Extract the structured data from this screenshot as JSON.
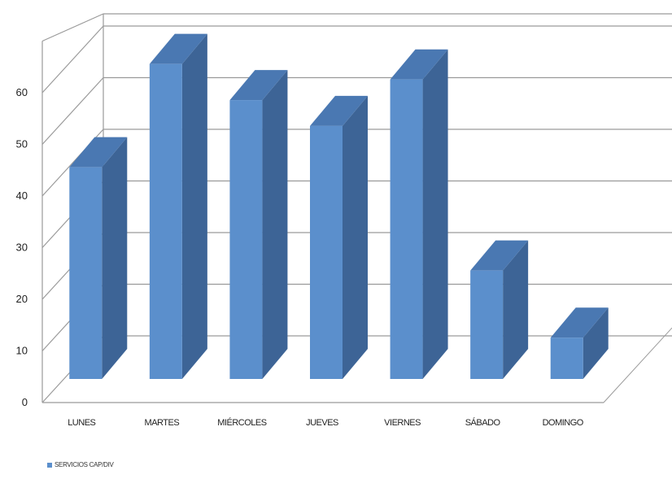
{
  "chart_data": {
    "type": "bar",
    "title": "",
    "xlabel": "",
    "ylabel": "",
    "categories": [
      "LUNES",
      "MARTES",
      "MIÉRCOLES",
      "JUEVES",
      "VIERNES",
      "SÁBADO",
      "DOMINGO"
    ],
    "series": [
      {
        "name": "SERVICIOS CAP/DIV",
        "values": [
          41,
          61,
          54,
          49,
          58,
          21,
          8
        ]
      }
    ],
    "y_ticks": [
      0,
      10,
      20,
      30,
      40,
      50,
      60
    ],
    "ylim": [
      0,
      70
    ],
    "grid": true,
    "projection": "3d",
    "legend_position": "bottom-left",
    "colors": {
      "bar_front": "#5B8FCC",
      "bar_side": "#3D6496",
      "bar_top": "#4A78B2",
      "grid": "#9A9A9A"
    }
  }
}
